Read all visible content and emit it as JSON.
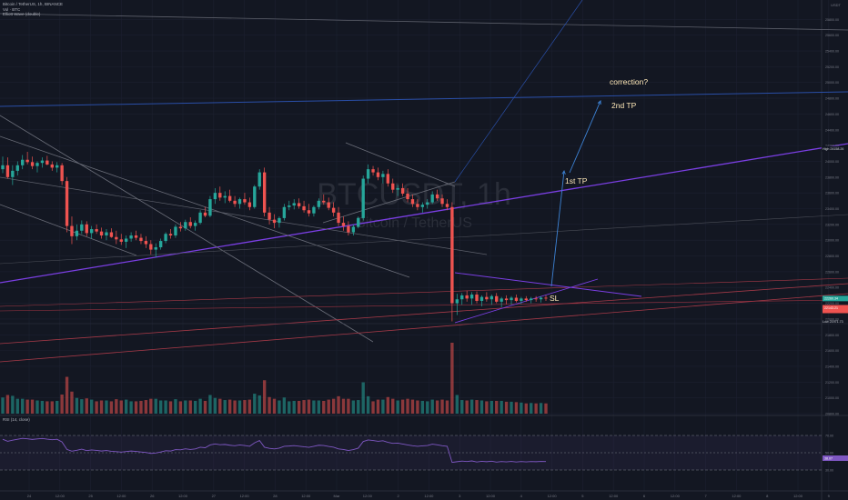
{
  "chart_data": {
    "type": "candlestick",
    "symbol_line": "Bitcoin / TetherUS, 1h, BINANCE",
    "indicator_1": "Vol · BTC",
    "indicator_2": "Elliott Wave (double)",
    "currency_label": "USDT",
    "watermark_symbol": "BTCUSDT, 1h",
    "watermark_name": "Bitcoin / TetherUS",
    "rsi_label": "RSI (14, close)",
    "annotations": {
      "correction": "correction?",
      "tp2": "2nd TP",
      "tp1": "1st TP",
      "sl": "SL"
    },
    "price_axis": {
      "ticks": [
        "25800.00",
        "25600.00",
        "25400.00",
        "25200.00",
        "25000.00",
        "24800.00",
        "24600.00",
        "24400.00",
        "24200.00",
        "24000.00",
        "23800.00",
        "23600.00",
        "23400.00",
        "23200.00",
        "23000.00",
        "22800.00",
        "22600.00",
        "22400.00",
        "22200.00",
        "22000.00",
        "21800.00",
        "21600.00",
        "21400.00",
        "21200.00",
        "21000.00",
        "20800.00"
      ],
      "ylim": [
        20800,
        26000
      ],
      "high_tag_label": "High",
      "high_tag_value": "24158.26",
      "low_tag_label": "Low",
      "low_tag_value": "21971.73",
      "last_price": "22260.34",
      "current_price": "22143.21"
    },
    "rsi_axis": {
      "ticks": [
        "70.00",
        "50.00",
        "30.00"
      ],
      "current": "38.07"
    },
    "time_axis": [
      "24",
      "12:00",
      "25",
      "12:00",
      "26",
      "12:00",
      "27",
      "12:00",
      "28",
      "12:00",
      "Mar",
      "12:00",
      "2",
      "12:00",
      "3",
      "12:00",
      "4",
      "12:00",
      "5",
      "12:00",
      "6",
      "12:00",
      "7",
      "12:00",
      "8",
      "12:00",
      "9"
    ],
    "candles": [
      [
        23900,
        24060,
        23850,
        23950
      ],
      [
        23950,
        24050,
        23780,
        23800
      ],
      [
        23800,
        23950,
        23700,
        23880
      ],
      [
        23880,
        24000,
        23820,
        23950
      ],
      [
        23950,
        24080,
        23900,
        24020
      ],
      [
        24020,
        24120,
        23960,
        23990
      ],
      [
        23990,
        24060,
        23900,
        23940
      ],
      [
        23940,
        24000,
        23860,
        23980
      ],
      [
        23980,
        24050,
        23920,
        24010
      ],
      [
        24010,
        24070,
        23950,
        23960
      ],
      [
        23960,
        24000,
        23880,
        23920
      ],
      [
        23920,
        23990,
        23860,
        23950
      ],
      [
        23950,
        23980,
        23700,
        23750
      ],
      [
        23750,
        23800,
        23100,
        23180
      ],
      [
        23180,
        23300,
        22950,
        23050
      ],
      [
        23050,
        23200,
        23000,
        23120
      ],
      [
        23120,
        23250,
        23080,
        23200
      ],
      [
        23200,
        23240,
        23050,
        23090
      ],
      [
        23090,
        23180,
        23020,
        23140
      ],
      [
        23140,
        23200,
        23080,
        23110
      ],
      [
        23110,
        23160,
        23020,
        23060
      ],
      [
        23060,
        23140,
        23000,
        23100
      ],
      [
        23100,
        23150,
        23030,
        23040
      ],
      [
        23040,
        23120,
        22950,
        23010
      ],
      [
        23010,
        23080,
        22940,
        22980
      ],
      [
        22980,
        23060,
        22900,
        23020
      ],
      [
        23020,
        23100,
        22980,
        23060
      ],
      [
        23060,
        23120,
        23000,
        23030
      ],
      [
        23030,
        23080,
        22950,
        22990
      ],
      [
        22990,
        23050,
        22900,
        22950
      ],
      [
        22950,
        23000,
        22820,
        22880
      ],
      [
        22880,
        22960,
        22780,
        22910
      ],
      [
        22910,
        23020,
        22880,
        22990
      ],
      [
        22990,
        23100,
        22960,
        23080
      ],
      [
        23080,
        23140,
        23020,
        23060
      ],
      [
        23060,
        23200,
        23030,
        23170
      ],
      [
        23170,
        23230,
        23110,
        23150
      ],
      [
        23150,
        23260,
        23120,
        23230
      ],
      [
        23230,
        23290,
        23150,
        23180
      ],
      [
        23180,
        23250,
        23120,
        23220
      ],
      [
        23220,
        23380,
        23200,
        23350
      ],
      [
        23350,
        23420,
        23290,
        23310
      ],
      [
        23310,
        23560,
        23290,
        23520
      ],
      [
        23520,
        23660,
        23460,
        23600
      ],
      [
        23600,
        23680,
        23500,
        23540
      ],
      [
        23540,
        23620,
        23470,
        23560
      ],
      [
        23560,
        23640,
        23480,
        23500
      ],
      [
        23500,
        23560,
        23420,
        23460
      ],
      [
        23460,
        23540,
        23400,
        23520
      ],
      [
        23520,
        23600,
        23450,
        23480
      ],
      [
        23480,
        23540,
        23380,
        23420
      ],
      [
        23420,
        23700,
        23400,
        23680
      ],
      [
        23680,
        23900,
        23640,
        23860
      ],
      [
        23860,
        23920,
        23300,
        23350
      ],
      [
        23350,
        23420,
        23200,
        23260
      ],
      [
        23260,
        23330,
        23150,
        23220
      ],
      [
        23220,
        23300,
        23160,
        23280
      ],
      [
        23280,
        23460,
        23250,
        23420
      ],
      [
        23420,
        23500,
        23380,
        23440
      ],
      [
        23440,
        23520,
        23390,
        23470
      ],
      [
        23470,
        23530,
        23400,
        23430
      ],
      [
        23430,
        23500,
        23350,
        23380
      ],
      [
        23380,
        23460,
        23300,
        23340
      ],
      [
        23340,
        23440,
        23300,
        23420
      ],
      [
        23420,
        23530,
        23390,
        23500
      ],
      [
        23500,
        23580,
        23450,
        23480
      ],
      [
        23480,
        23540,
        23380,
        23410
      ],
      [
        23410,
        23480,
        23300,
        23350
      ],
      [
        23350,
        23420,
        23180,
        23220
      ],
      [
        23220,
        23300,
        23120,
        23180
      ],
      [
        23180,
        23240,
        23060,
        23100
      ],
      [
        23100,
        23200,
        23060,
        23170
      ],
      [
        23170,
        23300,
        23150,
        23280
      ],
      [
        23280,
        23820,
        23250,
        23780
      ],
      [
        23780,
        23960,
        23720,
        23900
      ],
      [
        23900,
        23940,
        23820,
        23860
      ],
      [
        23860,
        23920,
        23760,
        23800
      ],
      [
        23800,
        23880,
        23720,
        23840
      ],
      [
        23840,
        23900,
        23680,
        23720
      ],
      [
        23720,
        23780,
        23600,
        23640
      ],
      [
        23640,
        23700,
        23560,
        23660
      ],
      [
        23660,
        23720,
        23560,
        23590
      ],
      [
        23590,
        23660,
        23480,
        23520
      ],
      [
        23520,
        23580,
        23420,
        23460
      ],
      [
        23460,
        23520,
        23380,
        23420
      ],
      [
        23420,
        23480,
        23350,
        23450
      ],
      [
        23450,
        23520,
        23400,
        23480
      ],
      [
        23480,
        23620,
        23460,
        23580
      ],
      [
        23580,
        23640,
        23500,
        23530
      ],
      [
        23530,
        23580,
        23420,
        23460
      ],
      [
        23460,
        23520,
        23380,
        23420
      ],
      [
        23420,
        23480,
        21971,
        22200
      ],
      [
        22200,
        22320,
        22050,
        22250
      ],
      [
        22250,
        22330,
        22180,
        22300
      ],
      [
        22300,
        22360,
        22220,
        22260
      ],
      [
        22260,
        22340,
        22180,
        22310
      ],
      [
        22310,
        22350,
        22200,
        22230
      ],
      [
        22230,
        22300,
        22160,
        22280
      ],
      [
        22280,
        22340,
        22220,
        22250
      ],
      [
        22250,
        22310,
        22180,
        22290
      ],
      [
        22290,
        22330,
        22200,
        22220
      ],
      [
        22220,
        22280,
        22150,
        22260
      ],
      [
        22260,
        22300,
        22190,
        22240
      ],
      [
        22240,
        22290,
        22180,
        22270
      ],
      [
        22270,
        22310,
        22210,
        22230
      ],
      [
        22230,
        22280,
        22190,
        22260
      ],
      [
        22260,
        22290,
        22220,
        22240
      ],
      [
        22240,
        22280,
        22200,
        22260
      ],
      [
        22260,
        22290,
        22220,
        22250
      ],
      [
        22250,
        22290,
        22210,
        22270
      ],
      [
        22270,
        22300,
        22230,
        22260
      ]
    ],
    "grid": true
  }
}
